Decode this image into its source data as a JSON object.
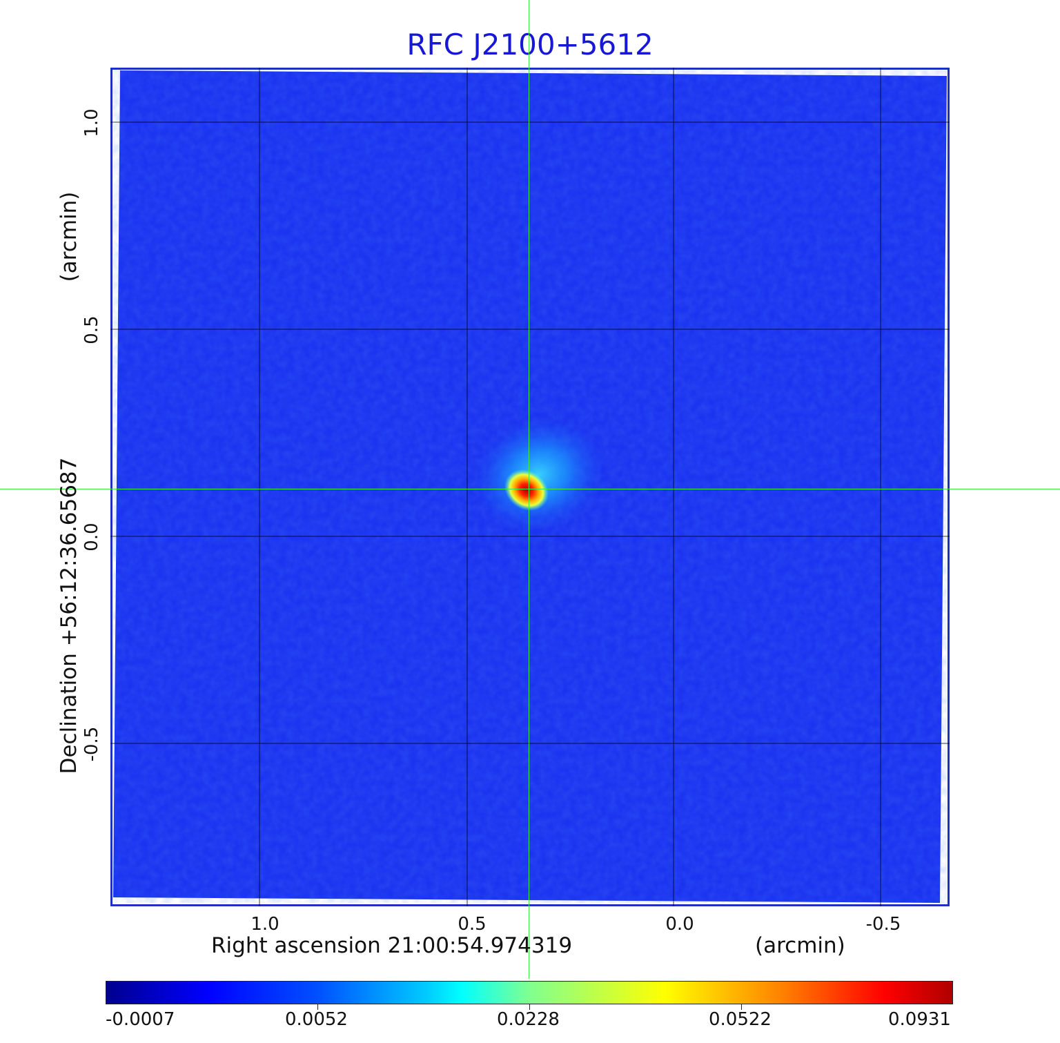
{
  "figure": {
    "title": "RFC J2100+5612",
    "xlabel": "Right ascension  21:00:54.974319",
    "xunit": "(arcmin)",
    "ylabel": "Declination  +56:12:36.65687",
    "yunit": "(arcmin)",
    "x_ticks": [
      "1.0",
      "0.5",
      "0.0",
      "-0.5"
    ],
    "y_ticks": [
      "1.0",
      "0.5",
      "0.0",
      "-0.5"
    ],
    "colorbar_labels": [
      "-0.0007",
      "0.0052",
      "0.0228",
      "0.0522",
      "0.0931"
    ],
    "colors": {
      "title": "#1717d8",
      "frame": "#1f2fbf",
      "background_field": "#1a33f0",
      "crosshair": "#44ee44",
      "grid": "#000000"
    },
    "source": {
      "ra_offset_arcmin": 0.35,
      "dec_offset_arcmin": 0.11,
      "peak_value": 0.0931
    },
    "colormap": "jet"
  }
}
